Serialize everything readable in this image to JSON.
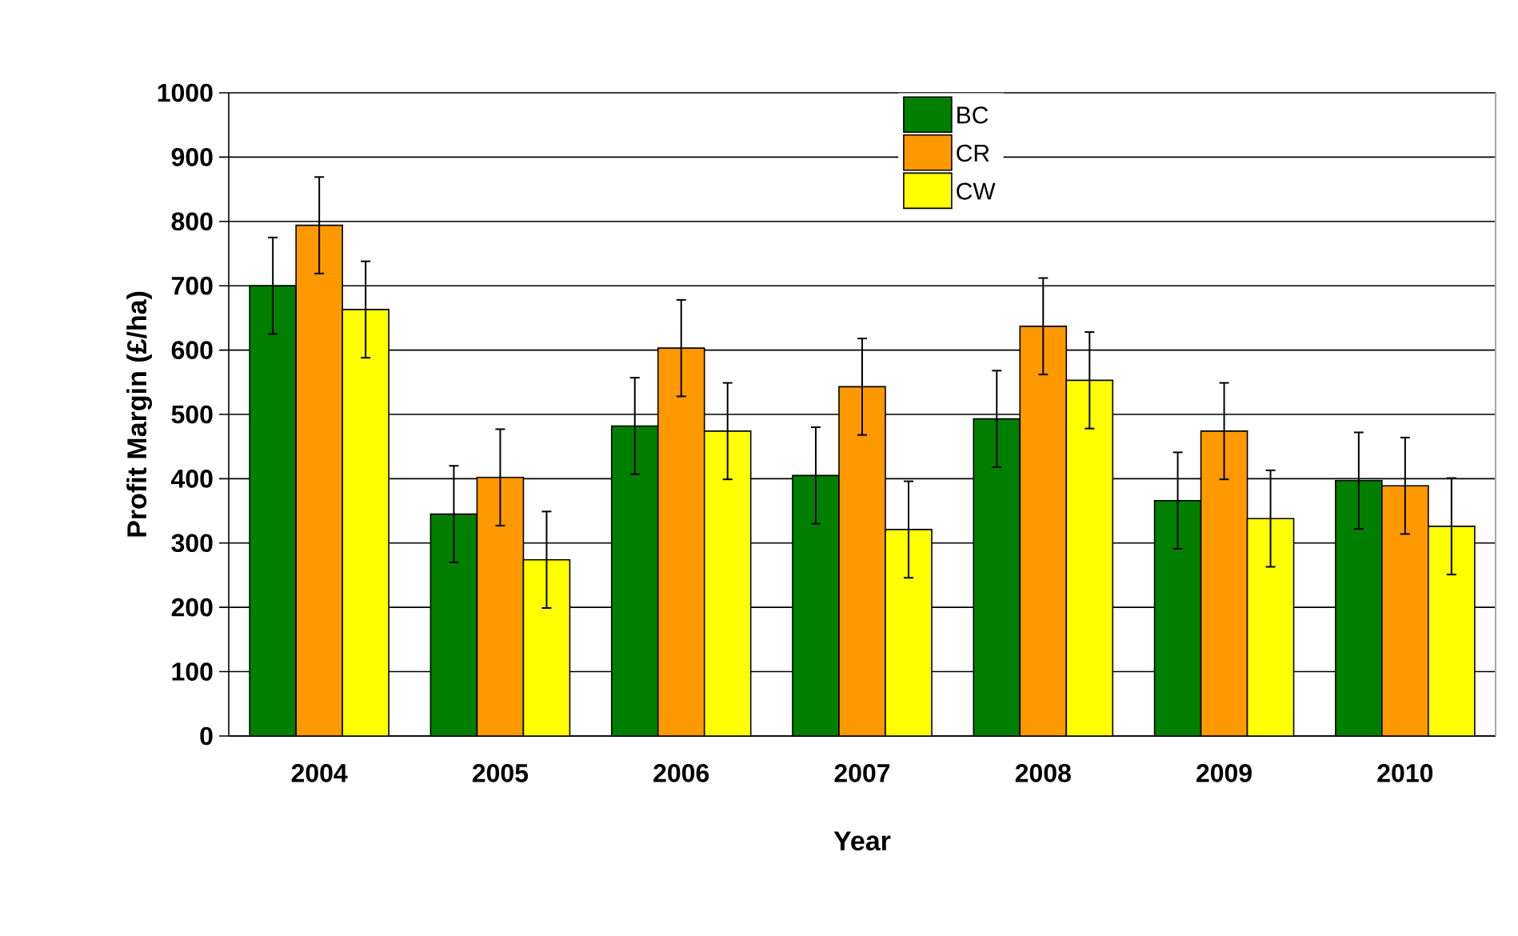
{
  "chart_data": {
    "type": "bar",
    "xlabel": "Year",
    "ylabel": "Profit Margin (£/ha)",
    "categories": [
      "2004",
      "2005",
      "2006",
      "2007",
      "2008",
      "2009",
      "2010"
    ],
    "series": [
      {
        "name": "BC",
        "color": "#007f00",
        "values": [
          700,
          345,
          482,
          405,
          493,
          366,
          397
        ],
        "errors": [
          75,
          75,
          75,
          75,
          75,
          75,
          75
        ]
      },
      {
        "name": "CR",
        "color": "#ff9900",
        "values": [
          794,
          402,
          603,
          543,
          637,
          474,
          389
        ],
        "errors": [
          75,
          75,
          75,
          75,
          75,
          75,
          75
        ]
      },
      {
        "name": "CW",
        "color": "#ffff00",
        "values": [
          663,
          274,
          474,
          321,
          553,
          338,
          326
        ],
        "errors": [
          75,
          75,
          75,
          75,
          75,
          75,
          75
        ]
      }
    ],
    "ylim": [
      0,
      1000
    ],
    "yticks": [
      0,
      100,
      200,
      300,
      400,
      500,
      600,
      700,
      800,
      900,
      1000
    ],
    "grid": "y",
    "legend": "top"
  }
}
